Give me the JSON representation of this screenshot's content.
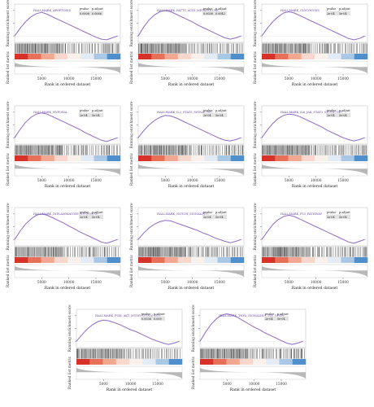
{
  "figure": {
    "running_label": "Running enrichment score",
    "ranked_label": "Ranked list metric",
    "x_label": "Rank in ordered dataset",
    "pvalue_header": "pvalue",
    "padjust_header": "p.adjust"
  },
  "colors": {
    "curve": "#8c6bc4",
    "heat": [
      "#d6322a",
      "#e8705a",
      "#f2a890",
      "#f8d8cc",
      "#fbf1ec",
      "#e2ebf6",
      "#a9c8e6",
      "#4f8fcc"
    ]
  },
  "chart_data": [
    {
      "type": "line",
      "title": "HALLMARK_APOPTOSIS",
      "pvalue": "0.0006",
      "padjust": "0.0066",
      "x": [
        0,
        1000,
        2000,
        3000,
        4000,
        5000,
        6000,
        7000,
        8000,
        9000,
        10000,
        11000,
        12000,
        13000,
        14000,
        15000,
        16000,
        17000,
        18000,
        19000
      ],
      "y": [
        0,
        0.12,
        0.22,
        0.3,
        0.35,
        0.37,
        0.34,
        0.3,
        0.26,
        0.22,
        0.18,
        0.14,
        0.1,
        0.06,
        0.02,
        -0.02,
        -0.05,
        -0.06,
        -0.03,
        0
      ],
      "xticks": [
        5000,
        10000,
        15000
      ]
    },
    {
      "type": "line",
      "title": "HALLMARK_FATTY_ACID_METABOLISM",
      "pvalue": "0.0036",
      "padjust": "0.0042",
      "x": [
        0,
        1000,
        2000,
        3000,
        4000,
        5000,
        6000,
        7000,
        8000,
        9000,
        10000,
        11000,
        12000,
        13000,
        14000,
        15000,
        16000,
        17000,
        18000,
        19000
      ],
      "y": [
        0,
        0.14,
        0.25,
        0.33,
        0.38,
        0.4,
        0.38,
        0.34,
        0.3,
        0.26,
        0.22,
        0.17,
        0.13,
        0.09,
        0.05,
        0.01,
        -0.03,
        -0.05,
        -0.03,
        0
      ],
      "xticks": [
        5000,
        10000,
        15000
      ]
    },
    {
      "type": "line",
      "title": "HALLMARK_GLYCOLYSIS",
      "pvalue": "2e-04",
      "padjust": "5e-04",
      "x": [
        0,
        1000,
        2000,
        3000,
        4000,
        5000,
        6000,
        7000,
        8000,
        9000,
        10000,
        11000,
        12000,
        13000,
        14000,
        15000,
        16000,
        17000,
        18000,
        19000
      ],
      "y": [
        0,
        0.12,
        0.22,
        0.3,
        0.36,
        0.38,
        0.36,
        0.32,
        0.28,
        0.24,
        0.2,
        0.16,
        0.12,
        0.08,
        0.04,
        0,
        -0.04,
        -0.06,
        -0.04,
        0
      ],
      "xticks": [
        5000,
        10000,
        15000
      ]
    },
    {
      "type": "line",
      "title": "HALLMARK_HYPOXIA",
      "pvalue": "2e-04",
      "padjust": "5e-04",
      "x": [
        0,
        1000,
        2000,
        3000,
        4000,
        5000,
        6000,
        7000,
        8000,
        9000,
        10000,
        11000,
        12000,
        13000,
        14000,
        15000,
        16000,
        17000,
        18000,
        19000
      ],
      "y": [
        0,
        0.13,
        0.24,
        0.32,
        0.37,
        0.39,
        0.37,
        0.33,
        0.29,
        0.25,
        0.21,
        0.17,
        0.13,
        0.08,
        0.04,
        0,
        -0.04,
        -0.06,
        -0.03,
        0
      ],
      "xticks": [
        5000,
        10000,
        15000
      ]
    },
    {
      "type": "line",
      "title": "HALLMARK_IL2_STAT5_SIGNALING",
      "pvalue": "2e-04",
      "padjust": "5e-04",
      "x": [
        0,
        1000,
        2000,
        3000,
        4000,
        5000,
        6000,
        7000,
        8000,
        9000,
        10000,
        11000,
        12000,
        13000,
        14000,
        15000,
        16000,
        17000,
        18000,
        19000
      ],
      "y": [
        0,
        0.11,
        0.2,
        0.27,
        0.32,
        0.35,
        0.34,
        0.31,
        0.27,
        0.23,
        0.19,
        0.15,
        0.11,
        0.07,
        0.03,
        -0.01,
        -0.04,
        -0.05,
        -0.03,
        0
      ],
      "xticks": [
        5000,
        10000,
        15000
      ]
    },
    {
      "type": "line",
      "title": "HALLMARK_IL6_JAK_STAT3_SIGNALING",
      "pvalue": "2e-04",
      "padjust": "5e-04",
      "x": [
        0,
        1000,
        2000,
        3000,
        4000,
        5000,
        6000,
        7000,
        8000,
        9000,
        10000,
        11000,
        12000,
        13000,
        14000,
        15000,
        16000,
        17000,
        18000,
        19000
      ],
      "y": [
        0,
        0.12,
        0.22,
        0.3,
        0.35,
        0.37,
        0.36,
        0.33,
        0.29,
        0.25,
        0.21,
        0.17,
        0.12,
        0.08,
        0.04,
        0,
        -0.03,
        -0.05,
        -0.03,
        0
      ],
      "xticks": [
        5000,
        10000,
        15000
      ]
    },
    {
      "type": "line",
      "title": "HALLMARK_INFLAMMATORY_RESPONSE",
      "pvalue": "2e-04",
      "padjust": "5e-04",
      "x": [
        0,
        1000,
        2000,
        3000,
        4000,
        5000,
        6000,
        7000,
        8000,
        9000,
        10000,
        11000,
        12000,
        13000,
        14000,
        15000,
        16000,
        17000,
        18000,
        19000
      ],
      "y": [
        0,
        0.13,
        0.24,
        0.32,
        0.38,
        0.4,
        0.38,
        0.34,
        0.3,
        0.26,
        0.21,
        0.17,
        0.12,
        0.08,
        0.04,
        0,
        -0.04,
        -0.06,
        -0.03,
        0
      ],
      "xticks": [
        5000,
        10000,
        15000
      ]
    },
    {
      "type": "line",
      "title": "HALLMARK_NOTCH_SIGNALING",
      "pvalue": "2e-04",
      "padjust": "5e-04",
      "x": [
        0,
        1000,
        2000,
        3000,
        4000,
        5000,
        6000,
        7000,
        8000,
        9000,
        10000,
        11000,
        12000,
        13000,
        14000,
        15000,
        16000,
        17000,
        18000,
        19000
      ],
      "y": [
        0,
        0.1,
        0.18,
        0.24,
        0.28,
        0.3,
        0.29,
        0.26,
        0.23,
        0.2,
        0.17,
        0.14,
        0.1,
        0.07,
        0.03,
        0,
        -0.03,
        -0.05,
        -0.03,
        0
      ],
      "xticks": [
        5000,
        10000,
        15000
      ]
    },
    {
      "type": "line",
      "title": "HALLMARK_P53_PATHWAY",
      "pvalue": "2e-04",
      "padjust": "5e-04",
      "x": [
        0,
        1000,
        2000,
        3000,
        4000,
        5000,
        6000,
        7000,
        8000,
        9000,
        10000,
        11000,
        12000,
        13000,
        14000,
        15000,
        16000,
        17000,
        18000,
        19000
      ],
      "y": [
        0,
        0.12,
        0.23,
        0.31,
        0.36,
        0.38,
        0.36,
        0.32,
        0.28,
        0.24,
        0.2,
        0.16,
        0.12,
        0.08,
        0.04,
        0,
        -0.04,
        -0.06,
        -0.03,
        0
      ],
      "xticks": [
        5000,
        10000,
        15000
      ]
    },
    {
      "type": "line",
      "title": "HALLMARK_PI3K_AKT_MTOR_SIGNALING",
      "pvalue": "0.0036",
      "padjust": "0.009",
      "x": [
        0,
        1000,
        2000,
        3000,
        4000,
        5000,
        6000,
        7000,
        8000,
        9000,
        10000,
        11000,
        12000,
        13000,
        14000,
        15000,
        16000,
        17000,
        18000,
        19000
      ],
      "y": [
        0,
        0.1,
        0.19,
        0.26,
        0.31,
        0.33,
        0.32,
        0.29,
        0.26,
        0.22,
        0.18,
        0.15,
        0.11,
        0.07,
        0.03,
        0,
        -0.03,
        -0.05,
        -0.03,
        0
      ],
      "xticks": [
        5000,
        10000,
        15000
      ]
    },
    {
      "type": "line",
      "title": "HALLMARK_TNFA_SIGNALING_VIA_NFKB",
      "pvalue": "2e-04",
      "padjust": "5e-04",
      "x": [
        0,
        1000,
        2000,
        3000,
        4000,
        5000,
        6000,
        7000,
        8000,
        9000,
        10000,
        11000,
        12000,
        13000,
        14000,
        15000,
        16000,
        17000,
        18000,
        19000
      ],
      "y": [
        0,
        0.14,
        0.26,
        0.35,
        0.41,
        0.43,
        0.41,
        0.37,
        0.32,
        0.27,
        0.22,
        0.18,
        0.13,
        0.09,
        0.05,
        0.01,
        -0.03,
        -0.05,
        -0.03,
        0
      ],
      "xticks": [
        5000,
        10000,
        15000
      ]
    }
  ]
}
